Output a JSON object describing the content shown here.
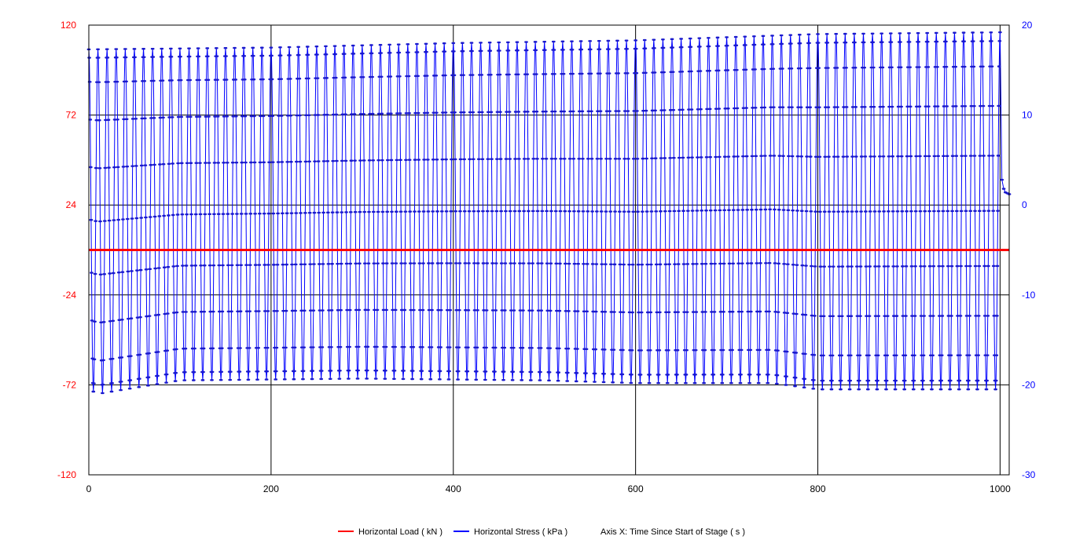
{
  "chart_data": {
    "type": "line",
    "x_axis": {
      "range": [
        0,
        1010
      ],
      "ticks": [
        0,
        200,
        400,
        600,
        800,
        1000
      ],
      "label": "Axis X: Time Since Start of Stage ( s )"
    },
    "y_left": {
      "range": [
        -120,
        120
      ],
      "ticks": [
        120,
        72,
        24,
        -24,
        -72,
        -120
      ],
      "color": "#ff0000"
    },
    "y_right": {
      "range": [
        -30,
        20
      ],
      "ticks": [
        20,
        10,
        0,
        -10,
        -20,
        -30
      ],
      "color": "#0000ff"
    },
    "grid": true,
    "legend_position": "bottom",
    "series": [
      {
        "name": "Horizontal Load ( kN )",
        "axis": "left",
        "color": "#ff0000",
        "x": [
          0,
          1010
        ],
        "y": [
          0,
          0
        ]
      },
      {
        "name": "Horizontal Stress ( kPa )",
        "axis": "right",
        "color": "#0000ff",
        "cycle_period_s": 10,
        "cycle_x_range": [
          0,
          1000
        ],
        "peak_x": [
          0,
          200,
          400,
          600,
          800,
          1000
        ],
        "peak_y": [
          17.3,
          17.5,
          18.0,
          18.3,
          19.0,
          19.2
        ],
        "trough_x": [
          0,
          10,
          100,
          300,
          500,
          600,
          750,
          800,
          1000
        ],
        "trough_y": [
          -20.5,
          -21.0,
          -19.5,
          -19.3,
          -19.5,
          -19.8,
          -19.8,
          -20.5,
          -20.5
        ],
        "tail_x": [
          1000,
          1002,
          1004,
          1006,
          1008,
          1010
        ],
        "tail_y": [
          -20.5,
          2.8,
          1.8,
          1.4,
          1.3,
          1.2
        ]
      }
    ],
    "legend": [
      {
        "label": "Horizontal Load ( kN )",
        "color": "#ff0000"
      },
      {
        "label": "Horizontal Stress ( kPa )",
        "color": "#0000ff"
      },
      {
        "label": "Axis X: Time Since Start of Stage ( s )",
        "color": ""
      }
    ]
  }
}
